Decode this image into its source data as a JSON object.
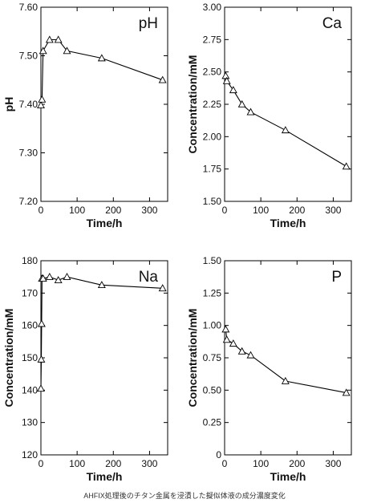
{
  "caption": "AHFIX処理後のチタン金属を浸漬した擬似体液の成分濃度変化",
  "chart_data": [
    {
      "type": "line",
      "title": "pH",
      "xlabel": "Time/h",
      "ylabel": "pH",
      "xlim": [
        0,
        350
      ],
      "ylim": [
        7.2,
        7.6
      ],
      "xticks": [
        0,
        100,
        200,
        300
      ],
      "yticks": [
        "7.20",
        "7.30",
        "7.40",
        "7.50",
        "7.60"
      ],
      "grid": false,
      "marker": "open-triangle",
      "x": [
        0,
        3,
        6,
        24,
        48,
        72,
        168,
        336
      ],
      "y": [
        7.398,
        7.41,
        7.51,
        7.533,
        7.533,
        7.51,
        7.495,
        7.45
      ]
    },
    {
      "type": "line",
      "title": "Ca",
      "xlabel": "Time/h",
      "ylabel": "Concentration/mM",
      "xlim": [
        0,
        350
      ],
      "ylim": [
        1.5,
        3.0
      ],
      "xticks": [
        0,
        100,
        200,
        300
      ],
      "yticks": [
        "1.50",
        "1.75",
        "2.00",
        "2.25",
        "2.50",
        "2.75",
        "3.00"
      ],
      "grid": false,
      "marker": "open-triangle",
      "x": [
        3,
        6,
        24,
        48,
        72,
        168,
        336
      ],
      "y": [
        2.47,
        2.43,
        2.36,
        2.25,
        2.19,
        2.05,
        1.77
      ]
    },
    {
      "type": "line",
      "title": "Na",
      "xlabel": "Time/h",
      "ylabel": "Concentration/mM",
      "xlim": [
        0,
        350
      ],
      "ylim": [
        120,
        180
      ],
      "xticks": [
        0,
        100,
        200,
        300
      ],
      "yticks": [
        "120",
        "130",
        "140",
        "150",
        "160",
        "170",
        "180"
      ],
      "grid": false,
      "marker": "open-triangle",
      "x": [
        0,
        1,
        2,
        3,
        6,
        24,
        48,
        72,
        168,
        336
      ],
      "y": [
        140.5,
        149.5,
        160.5,
        174.5,
        174.5,
        175,
        174,
        175,
        172.5,
        171.5
      ]
    },
    {
      "type": "line",
      "title": "P",
      "xlabel": "Time/h",
      "ylabel": "Concentration/mM",
      "xlim": [
        0,
        350
      ],
      "ylim": [
        0,
        1.5
      ],
      "xticks": [
        0,
        100,
        200,
        300
      ],
      "yticks": [
        "0",
        "0.25",
        "0.50",
        "0.75",
        "1.00",
        "1.25",
        "1.50"
      ],
      "grid": false,
      "marker": "open-triangle",
      "x": [
        3,
        6,
        24,
        48,
        72,
        168,
        336
      ],
      "y": [
        0.97,
        0.89,
        0.86,
        0.8,
        0.77,
        0.57,
        0.48
      ]
    }
  ]
}
